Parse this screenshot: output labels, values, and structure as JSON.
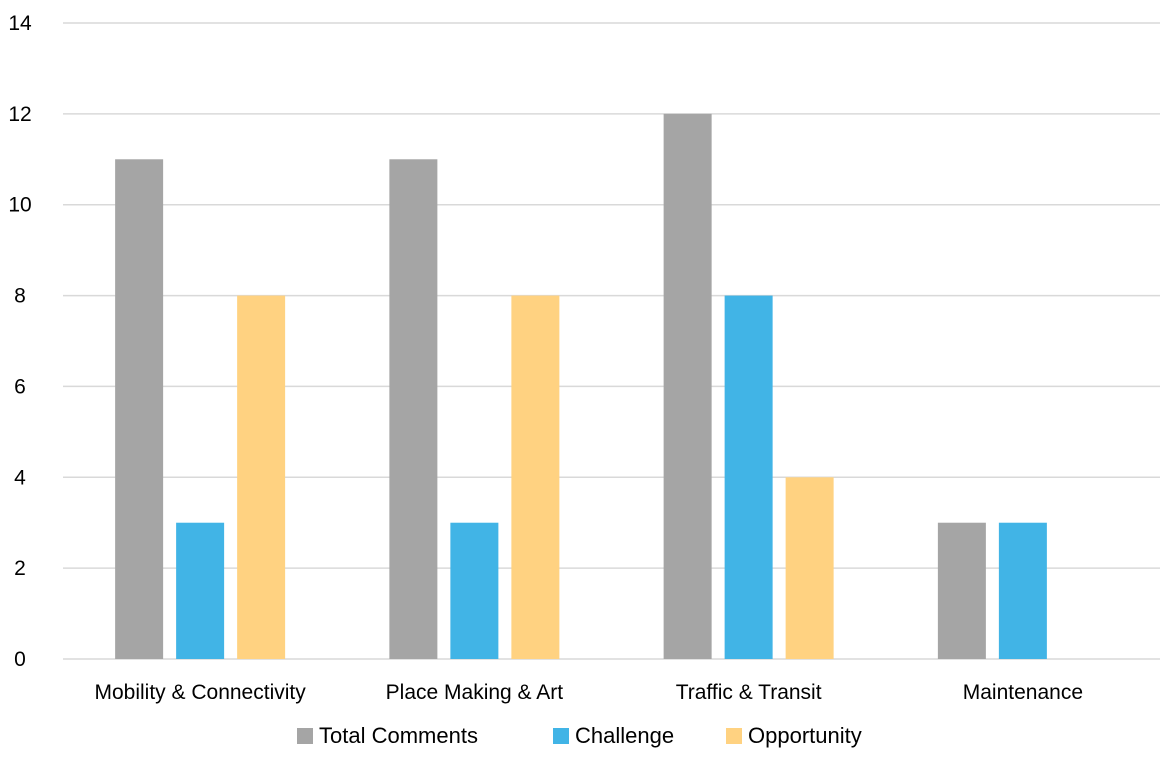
{
  "chart_data": {
    "type": "bar",
    "title": "",
    "xlabel": "",
    "ylabel": "",
    "categories": [
      "Mobility & Connectivity",
      "Place Making & Art",
      "Traffic & Transit",
      "Maintenance"
    ],
    "series": [
      {
        "name": "Total Comments",
        "color": "#a5a5a5",
        "values": [
          11,
          11,
          12,
          3
        ]
      },
      {
        "name": "Challenge",
        "color": "#41b4e6",
        "values": [
          3,
          3,
          8,
          3
        ]
      },
      {
        "name": "Opportunity",
        "color": "#ffd281",
        "values": [
          8,
          8,
          4,
          0
        ]
      }
    ],
    "ylim": [
      0,
      14
    ],
    "yticks": [
      0,
      2,
      4,
      6,
      8,
      10,
      12,
      14
    ],
    "grid": true,
    "legend_position": "bottom"
  }
}
